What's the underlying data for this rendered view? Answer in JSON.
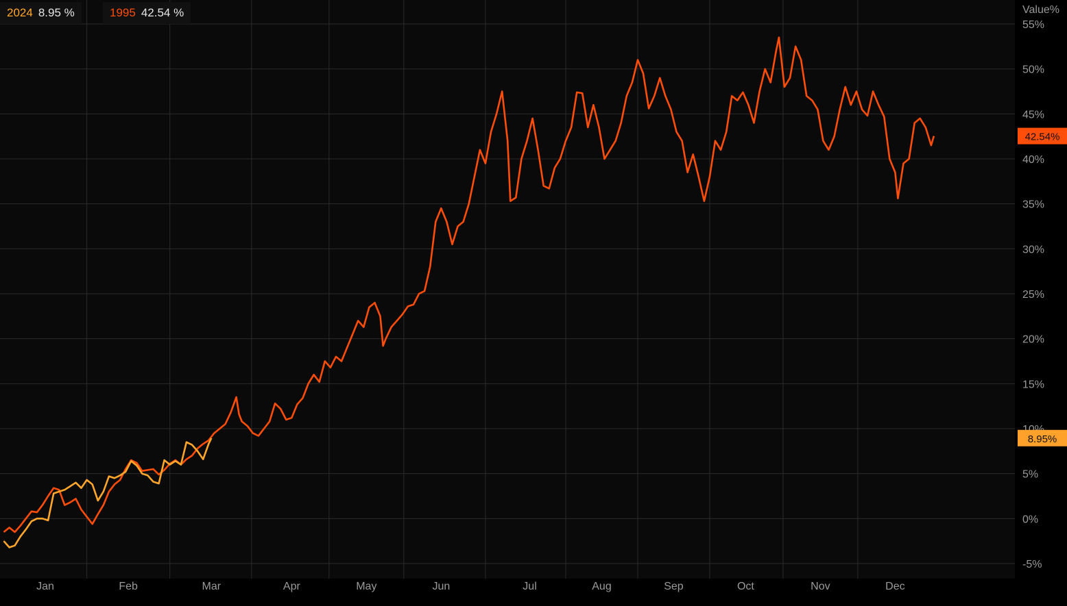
{
  "colors": {
    "series_2024": "#ffa62b",
    "series_1995": "#ff4d0a",
    "badge_1995": "#ff4d0a",
    "badge_2024": "#ffa12b",
    "grid": "#2b2b2b",
    "axis_text": "#9a9a9a",
    "plot_bg": "#0a0a0b",
    "legend_bg": "#111111"
  },
  "legend": [
    {
      "year": "2024",
      "value": "8.95 %"
    },
    {
      "year": "1995",
      "value": "42.54 %"
    }
  ],
  "badges": {
    "s1995": "42.54%",
    "s2024": "8.95%"
  },
  "chart_data": {
    "type": "line",
    "ylabel": "Value%",
    "ylim": [
      -6.5,
      56.5
    ],
    "y_ticks": [
      -5,
      0,
      5,
      10,
      15,
      20,
      25,
      30,
      35,
      40,
      45,
      50,
      55
    ],
    "y_tick_labels": [
      "-5%",
      "0%",
      "5%",
      "10%",
      "15%",
      "20%",
      "25%",
      "30%",
      "35%",
      "40%",
      "45%",
      "50%",
      "55%"
    ],
    "x_unit": "day_of_year",
    "xlim": [
      1,
      366
    ],
    "x_tick_labels": [
      "Jan",
      "Feb",
      "Mar",
      "Apr",
      "May",
      "Jun",
      "Jul",
      "Aug",
      "Sep",
      "Oct",
      "Nov",
      "Dec"
    ],
    "x_tick_positions": [
      16,
      46,
      76,
      105,
      132,
      159,
      191,
      217,
      243,
      269,
      296,
      323
    ],
    "grid": true,
    "legend_position": "top-left",
    "series": [
      {
        "name": "1995",
        "last": 42.54,
        "points": [
          [
            1,
            -1.5
          ],
          [
            3,
            -1
          ],
          [
            5,
            -1.5
          ],
          [
            7,
            -0.8
          ],
          [
            9,
            0
          ],
          [
            11,
            0.8
          ],
          [
            13,
            0.7
          ],
          [
            15,
            1.5
          ],
          [
            17,
            2.5
          ],
          [
            19,
            3.4
          ],
          [
            21,
            3.2
          ],
          [
            23,
            1.5
          ],
          [
            25,
            1.8
          ],
          [
            27,
            2.2
          ],
          [
            29,
            1
          ],
          [
            31,
            0.2
          ],
          [
            33,
            -0.6
          ],
          [
            35,
            0.5
          ],
          [
            37,
            1.5
          ],
          [
            39,
            3
          ],
          [
            41,
            3.8
          ],
          [
            43,
            4.3
          ],
          [
            45,
            5.5
          ],
          [
            47,
            6.5
          ],
          [
            49,
            6.2
          ],
          [
            51,
            5.3
          ],
          [
            53,
            5.4
          ],
          [
            55,
            5.5
          ],
          [
            57,
            4.9
          ],
          [
            59,
            5.4
          ],
          [
            61,
            6.1
          ],
          [
            63,
            6.5
          ],
          [
            65,
            6.0
          ],
          [
            67,
            6.6
          ],
          [
            69,
            7.0
          ],
          [
            71,
            7.8
          ],
          [
            73,
            8.3
          ],
          [
            75,
            8.7
          ],
          [
            77,
            9.5
          ],
          [
            79,
            10
          ],
          [
            81,
            10.5
          ],
          [
            83,
            11.8
          ],
          [
            85,
            13.5
          ],
          [
            86,
            11.6
          ],
          [
            87,
            10.8
          ],
          [
            89,
            10.3
          ],
          [
            91,
            9.5
          ],
          [
            93,
            9.2
          ],
          [
            95,
            10
          ],
          [
            97,
            10.8
          ],
          [
            99,
            12.8
          ],
          [
            101,
            12.2
          ],
          [
            103,
            11
          ],
          [
            105,
            11.2
          ],
          [
            107,
            12.7
          ],
          [
            109,
            13.4
          ],
          [
            111,
            15
          ],
          [
            113,
            16
          ],
          [
            115,
            15.2
          ],
          [
            117,
            17.5
          ],
          [
            119,
            16.8
          ],
          [
            121,
            18
          ],
          [
            123,
            17.5
          ],
          [
            125,
            19
          ],
          [
            127,
            20.5
          ],
          [
            129,
            22
          ],
          [
            131,
            21.3
          ],
          [
            133,
            23.5
          ],
          [
            135,
            24
          ],
          [
            137,
            22.5
          ],
          [
            138,
            19.2
          ],
          [
            139,
            20
          ],
          [
            141,
            21.3
          ],
          [
            143,
            22
          ],
          [
            145,
            22.7
          ],
          [
            147,
            23.6
          ],
          [
            149,
            23.8
          ],
          [
            151,
            25
          ],
          [
            153,
            25.3
          ],
          [
            155,
            28
          ],
          [
            157,
            33
          ],
          [
            159,
            34.5
          ],
          [
            161,
            33
          ],
          [
            163,
            30.5
          ],
          [
            165,
            32.5
          ],
          [
            167,
            33
          ],
          [
            169,
            35
          ],
          [
            171,
            38
          ],
          [
            173,
            41
          ],
          [
            175,
            39.5
          ],
          [
            177,
            43
          ],
          [
            179,
            45
          ],
          [
            181,
            47.5
          ],
          [
            183,
            42
          ],
          [
            184,
            35.3
          ],
          [
            186,
            35.7
          ],
          [
            188,
            40
          ],
          [
            190,
            42
          ],
          [
            192,
            44.5
          ],
          [
            194,
            41
          ],
          [
            196,
            37
          ],
          [
            198,
            36.7
          ],
          [
            200,
            39
          ],
          [
            202,
            40
          ],
          [
            204,
            42
          ],
          [
            206,
            43.5
          ],
          [
            208,
            47.4
          ],
          [
            210,
            47.3
          ],
          [
            212,
            43.5
          ],
          [
            214,
            46
          ],
          [
            216,
            43.5
          ],
          [
            218,
            40
          ],
          [
            220,
            41
          ],
          [
            222,
            42
          ],
          [
            224,
            44
          ],
          [
            226,
            47
          ],
          [
            228,
            48.5
          ],
          [
            230,
            51
          ],
          [
            232,
            49.5
          ],
          [
            234,
            45.6
          ],
          [
            236,
            47
          ],
          [
            238,
            49
          ],
          [
            240,
            47
          ],
          [
            242,
            45.5
          ],
          [
            244,
            43
          ],
          [
            246,
            42
          ],
          [
            248,
            38.5
          ],
          [
            250,
            40.5
          ],
          [
            252,
            38
          ],
          [
            254,
            35.3
          ],
          [
            256,
            38
          ],
          [
            258,
            42
          ],
          [
            260,
            41
          ],
          [
            262,
            43
          ],
          [
            264,
            47
          ],
          [
            266,
            46.5
          ],
          [
            268,
            47.4
          ],
          [
            270,
            46
          ],
          [
            272,
            44
          ],
          [
            274,
            47.5
          ],
          [
            276,
            50
          ],
          [
            278,
            48.5
          ],
          [
            280,
            52
          ],
          [
            281,
            53.5
          ],
          [
            283,
            48
          ],
          [
            285,
            49
          ],
          [
            287,
            52.5
          ],
          [
            289,
            51
          ],
          [
            291,
            47
          ],
          [
            293,
            46.5
          ],
          [
            295,
            45.5
          ],
          [
            297,
            42
          ],
          [
            299,
            41
          ],
          [
            301,
            42.5
          ],
          [
            303,
            45.5
          ],
          [
            305,
            48
          ],
          [
            307,
            46
          ],
          [
            309,
            47.5
          ],
          [
            311,
            45.5
          ],
          [
            313,
            44.8
          ],
          [
            315,
            47.5
          ],
          [
            317,
            46
          ],
          [
            319,
            44.7
          ],
          [
            321,
            40
          ],
          [
            323,
            38.5
          ],
          [
            324,
            35.6
          ],
          [
            326,
            39.5
          ],
          [
            328,
            40
          ],
          [
            330,
            44
          ],
          [
            332,
            44.5
          ],
          [
            334,
            43.5
          ],
          [
            336,
            41.5
          ],
          [
            337,
            42.54
          ]
        ]
      },
      {
        "name": "2024",
        "last": 8.95,
        "points": [
          [
            1,
            -2.5
          ],
          [
            3,
            -3.2
          ],
          [
            5,
            -3
          ],
          [
            7,
            -2
          ],
          [
            9,
            -1.2
          ],
          [
            11,
            -0.3
          ],
          [
            13,
            0
          ],
          [
            15,
            0
          ],
          [
            17,
            -0.2
          ],
          [
            19,
            2.8
          ],
          [
            21,
            3
          ],
          [
            23,
            3.2
          ],
          [
            25,
            3.6
          ],
          [
            27,
            4
          ],
          [
            29,
            3.4
          ],
          [
            31,
            4.3
          ],
          [
            33,
            3.8
          ],
          [
            35,
            2
          ],
          [
            37,
            3
          ],
          [
            39,
            4.7
          ],
          [
            41,
            4.5
          ],
          [
            43,
            4.8
          ],
          [
            45,
            5.2
          ],
          [
            47,
            6.4
          ],
          [
            49,
            5.9
          ],
          [
            51,
            5.0
          ],
          [
            53,
            4.8
          ],
          [
            55,
            4.1
          ],
          [
            57,
            3.9
          ],
          [
            59,
            6.5
          ],
          [
            61,
            6.0
          ],
          [
            63,
            6.4
          ],
          [
            65,
            6.0
          ],
          [
            67,
            8.5
          ],
          [
            69,
            8.2
          ],
          [
            71,
            7.5
          ],
          [
            73,
            6.6
          ],
          [
            75,
            8.3
          ],
          [
            76,
            8.95
          ]
        ]
      }
    ]
  }
}
